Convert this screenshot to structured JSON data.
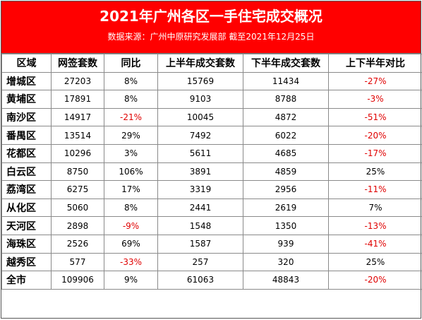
{
  "title": "2021年广州各区一手住宅成交概况",
  "subtitle": "数据来源：广州中原研究发展部 截至2021年12月25日",
  "columns": [
    "区域",
    "网签套数",
    "同比",
    "上半年成交套数",
    "下半年成交套数",
    "上下半年对比"
  ],
  "rows": [
    {
      "region": "增城区",
      "signed": "27203",
      "yoy": "8%",
      "h1": "15769",
      "h2": "11434",
      "diff": "-27%",
      "yoy_neg": false,
      "diff_neg": true
    },
    {
      "region": "黄埔区",
      "signed": "17891",
      "yoy": "8%",
      "h1": "9103",
      "h2": "8788",
      "diff": "-3%",
      "yoy_neg": false,
      "diff_neg": true
    },
    {
      "region": "南沙区",
      "signed": "14917",
      "yoy": "-21%",
      "h1": "10045",
      "h2": "4872",
      "diff": "-51%",
      "yoy_neg": true,
      "diff_neg": true
    },
    {
      "region": "番禺区",
      "signed": "13514",
      "yoy": "29%",
      "h1": "7492",
      "h2": "6022",
      "diff": "-20%",
      "yoy_neg": false,
      "diff_neg": true
    },
    {
      "region": "花都区",
      "signed": "10296",
      "yoy": "3%",
      "h1": "5611",
      "h2": "4685",
      "diff": "-17%",
      "yoy_neg": false,
      "diff_neg": true
    },
    {
      "region": "白云区",
      "signed": "8750",
      "yoy": "106%",
      "h1": "3891",
      "h2": "4859",
      "diff": "25%",
      "yoy_neg": false,
      "diff_neg": false
    },
    {
      "region": "荔湾区",
      "signed": "6275",
      "yoy": "17%",
      "h1": "3319",
      "h2": "2956",
      "diff": "-11%",
      "yoy_neg": false,
      "diff_neg": true
    },
    {
      "region": "从化区",
      "signed": "5060",
      "yoy": "8%",
      "h1": "2441",
      "h2": "2619",
      "diff": "7%",
      "yoy_neg": false,
      "diff_neg": false
    },
    {
      "region": "天河区",
      "signed": "2898",
      "yoy": "-9%",
      "h1": "1548",
      "h2": "1350",
      "diff": "-13%",
      "yoy_neg": true,
      "diff_neg": true
    },
    {
      "region": "海珠区",
      "signed": "2526",
      "yoy": "69%",
      "h1": "1587",
      "h2": "939",
      "diff": "-41%",
      "yoy_neg": false,
      "diff_neg": true
    },
    {
      "region": "越秀区",
      "signed": "577",
      "yoy": "-33%",
      "h1": "257",
      "h2": "320",
      "diff": "25%",
      "yoy_neg": true,
      "diff_neg": false
    },
    {
      "region": "全市",
      "signed": "109906",
      "yoy": "9%",
      "h1": "61063",
      "h2": "48843",
      "diff": "-20%",
      "yoy_neg": false,
      "diff_neg": true
    }
  ],
  "colors": {
    "header_bg": "#ff0000",
    "header_text": "#ffffff",
    "negative": "#e00000"
  }
}
